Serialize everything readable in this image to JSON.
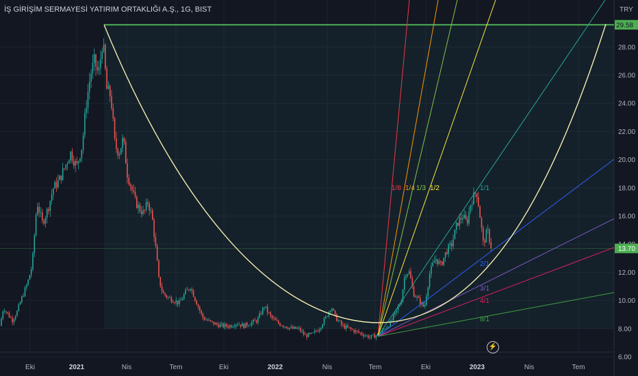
{
  "header": {
    "title": "İŞ GİRİŞİM SERMAYESİ YATIRIM ORTAKLIĞI A.Ş., 1G, BIST"
  },
  "currency": "TRY",
  "colors": {
    "background": "#131722",
    "grid": "#1e222d",
    "up": "#26a69a",
    "down": "#ef5350",
    "top_line": "#4caf50",
    "arc": "#f5ecb0",
    "price_tag": "#4caf50"
  },
  "chart_data": {
    "type": "candlestick",
    "ylim": [
      6,
      31
    ],
    "yticks": [
      "6.00",
      "8.00",
      "10.00",
      "12.00",
      "14.00",
      "16.00",
      "18.00",
      "20.00",
      "22.00",
      "24.00",
      "26.00",
      "28.00"
    ],
    "xticks": [
      {
        "label": "Eki",
        "bold": false
      },
      {
        "label": "2021",
        "bold": true
      },
      {
        "label": "Nis",
        "bold": false
      },
      {
        "label": "Tem",
        "bold": false
      },
      {
        "label": "Eki",
        "bold": false
      },
      {
        "label": "2022",
        "bold": true
      },
      {
        "label": "Nis",
        "bold": false
      },
      {
        "label": "Tem",
        "bold": false
      },
      {
        "label": "Eki",
        "bold": false
      },
      {
        "label": "2023",
        "bold": true
      },
      {
        "label": "Nis",
        "bold": false
      },
      {
        "label": "Tem",
        "bold": false
      }
    ],
    "price_path": [
      [
        0,
        8.2
      ],
      [
        5,
        9.5
      ],
      [
        12,
        9
      ],
      [
        18,
        8.6
      ],
      [
        25,
        9.2
      ],
      [
        32,
        10.2
      ],
      [
        40,
        11.2
      ],
      [
        47,
        12.5
      ],
      [
        54,
        17
      ],
      [
        62,
        15.5
      ],
      [
        70,
        16.5
      ],
      [
        78,
        18
      ],
      [
        86,
        18.5
      ],
      [
        95,
        19.5
      ],
      [
        103,
        20.5
      ],
      [
        112,
        19.5
      ],
      [
        120,
        21
      ],
      [
        126,
        24
      ],
      [
        132,
        26
      ],
      [
        138,
        27
      ],
      [
        144,
        26
      ],
      [
        150,
        28.5
      ],
      [
        156,
        25
      ],
      [
        162,
        24.5
      ],
      [
        168,
        21
      ],
      [
        174,
        20.5
      ],
      [
        180,
        21.5
      ],
      [
        186,
        19
      ],
      [
        192,
        18
      ],
      [
        198,
        17
      ],
      [
        204,
        16.5
      ],
      [
        210,
        16.2
      ],
      [
        216,
        17
      ],
      [
        222,
        16
      ],
      [
        228,
        13.5
      ],
      [
        232,
        11.5
      ],
      [
        238,
        10.5
      ],
      [
        246,
        10.2
      ],
      [
        255,
        10
      ],
      [
        262,
        9.8
      ],
      [
        270,
        10.5
      ],
      [
        278,
        11
      ],
      [
        286,
        10
      ],
      [
        296,
        8.8
      ],
      [
        306,
        8.5
      ],
      [
        316,
        8.3
      ],
      [
        326,
        8.2
      ],
      [
        336,
        8.2
      ],
      [
        346,
        8.4
      ],
      [
        356,
        8.2
      ],
      [
        366,
        8.4
      ],
      [
        376,
        8.6
      ],
      [
        386,
        9.6
      ],
      [
        396,
        8.8
      ],
      [
        406,
        8.4
      ],
      [
        416,
        8.2
      ],
      [
        426,
        8
      ],
      [
        436,
        8
      ],
      [
        446,
        7.5
      ],
      [
        456,
        7.6
      ],
      [
        466,
        8
      ],
      [
        476,
        8.8
      ],
      [
        484,
        9.6
      ],
      [
        490,
        8.8
      ],
      [
        500,
        8.2
      ],
      [
        510,
        8
      ],
      [
        520,
        7.8
      ],
      [
        530,
        7.6
      ],
      [
        540,
        7.4
      ],
      [
        548,
        7.5
      ],
      [
        556,
        7.7
      ],
      [
        562,
        8
      ],
      [
        570,
        8.4
      ],
      [
        578,
        9.1
      ],
      [
        586,
        10
      ],
      [
        592,
        12
      ],
      [
        598,
        12
      ],
      [
        604,
        10.5
      ],
      [
        612,
        10
      ],
      [
        620,
        9.5
      ],
      [
        628,
        12
      ],
      [
        636,
        13
      ],
      [
        644,
        12.5
      ],
      [
        652,
        13.5
      ],
      [
        660,
        14
      ],
      [
        668,
        15.5
      ],
      [
        676,
        16
      ],
      [
        682,
        15.5
      ],
      [
        688,
        17
      ],
      [
        696,
        17.8
      ],
      [
        700,
        16.5
      ],
      [
        706,
        14
      ],
      [
        712,
        15
      ],
      [
        718,
        13.7
      ]
    ],
    "price_last": "13.70",
    "top_line_value": "29.58",
    "fan_labels": [
      {
        "label": "1/8",
        "color": "#f23645"
      },
      {
        "label": "1/4",
        "color": "#ff9800"
      },
      {
        "label": "1/3",
        "color": "#8bc34a"
      },
      {
        "label": "1/2",
        "color": "#ffeb3b"
      },
      {
        "label": "1/1",
        "color": "#26a69a"
      },
      {
        "label": "2/1",
        "color": "#2962ff"
      },
      {
        "label": "3/1",
        "color": "#7e57c2"
      },
      {
        "label": "4/1",
        "color": "#e91e63"
      },
      {
        "label": "8/1",
        "color": "#43a047"
      }
    ]
  }
}
